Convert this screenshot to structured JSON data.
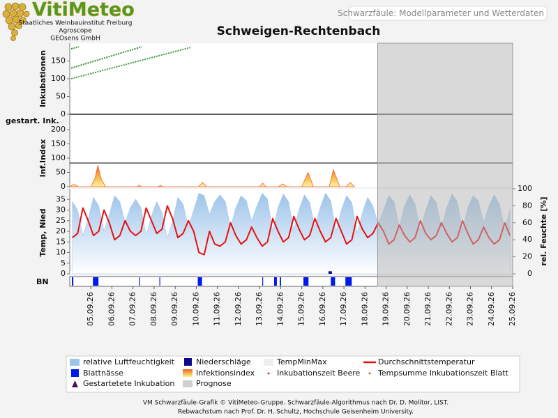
{
  "header": {
    "logo": "VitiMeteo",
    "org": [
      "Staatliches Weinbauinstitut Freiburg",
      "Agroscope",
      "GEOsens GmbH"
    ],
    "tab": "Schwarzfäule: Modellparameter und Wetterdaten"
  },
  "chart_data": {
    "type": "line",
    "title": "Schweigen-Rechtenbach",
    "xlim": [
      -1,
      20
    ],
    "xticks": [
      {
        "value": 0,
        "label": "05.09.26"
      },
      {
        "value": 1,
        "label": "06.09.26"
      },
      {
        "value": 2,
        "label": "07.09.26"
      },
      {
        "value": 3,
        "label": "08.09.26"
      },
      {
        "value": 4,
        "label": "09.09.26"
      },
      {
        "value": 5,
        "label": "10.09.26"
      },
      {
        "value": 6,
        "label": "11.09.26"
      },
      {
        "value": 7,
        "label": "12.09.26"
      },
      {
        "value": 8,
        "label": "13.09.26"
      },
      {
        "value": 9,
        "label": "14.09.26"
      },
      {
        "value": 10,
        "label": "15.09.26"
      },
      {
        "value": 11,
        "label": "16.09.26"
      },
      {
        "value": 12,
        "label": "17.09.26"
      },
      {
        "value": 13,
        "label": "18.09.26"
      },
      {
        "value": 14,
        "label": "19.09.26"
      },
      {
        "value": 15,
        "label": "20.09.26"
      },
      {
        "value": 16,
        "label": "21.09.26"
      },
      {
        "value": 17,
        "label": "22.09.26"
      },
      {
        "value": 18,
        "label": "23.09.26"
      },
      {
        "value": 19,
        "label": "24.09.26"
      },
      {
        "value": 20,
        "label": "25.09.26"
      }
    ],
    "forecast_start": 13.6,
    "forecast_color": "#b4b4b4",
    "started_label": "gestart. Ink.",
    "bn_label": "BN",
    "bn_color": "#0018f0",
    "bn": [
      [
        -0.9,
        -0.83
      ],
      [
        0.1,
        0.36
      ],
      [
        2.29,
        2.32
      ],
      [
        3.25,
        3.28
      ],
      [
        5.07,
        5.27
      ],
      [
        8.13,
        8.16
      ],
      [
        8.69,
        8.82
      ],
      [
        8.96,
        9.02
      ],
      [
        10.08,
        10.32
      ],
      [
        11.38,
        11.58
      ],
      [
        12.07,
        12.37
      ]
    ],
    "panels": [
      {
        "ylabel": "Inkubationen",
        "ylim": [
          0,
          200
        ],
        "yticks": [
          0,
          50,
          100,
          150
        ],
        "series": [
          {
            "type": "dashed",
            "color": "#2a8a2a",
            "x": [
              -0.93,
              -0.57
            ],
            "values": [
              184,
              190
            ]
          },
          {
            "type": "dashed",
            "color": "#2a8a2a",
            "x": [
              -0.93,
              2.42
            ],
            "values": [
              130,
              190
            ]
          },
          {
            "type": "dashed",
            "color": "#3d9a3d",
            "x": [
              -0.93,
              4.72
            ],
            "values": [
              100,
              188
            ]
          }
        ]
      },
      {
        "ylabel": "Inf.Index",
        "ylim": [
          0,
          200
        ],
        "yticks": [
          0,
          50,
          100,
          150,
          200
        ],
        "reference_line": 83,
        "series": [
          {
            "type": "gradient-area",
            "color": "#f06030",
            "x": [
              -1,
              -0.8,
              -0.7,
              -0.6,
              0,
              0.2,
              0.33,
              0.5,
              0.7,
              2.2,
              2.3,
              2.4,
              3.2,
              3.3,
              3.4,
              5.1,
              5.3,
              5.5,
              8.0,
              8.15,
              8.3,
              8.9,
              9.1,
              9.3,
              10.0,
              10.3,
              10.55,
              11.3,
              11.5,
              11.8,
              12.1,
              12.3,
              12.5
            ],
            "values": [
              0,
              8,
              5,
              0,
              0,
              30,
              75,
              25,
              0,
              0,
              6,
              0,
              0,
              5,
              0,
              0,
              15,
              0,
              0,
              12,
              0,
              0,
              10,
              0,
              0,
              50,
              0,
              0,
              60,
              0,
              0,
              15,
              0
            ]
          }
        ]
      },
      {
        "ylabel": "Temp, Nied",
        "y2label": "rel. Feuchte [%]",
        "ylim": [
          0,
          40
        ],
        "yticks": [
          0,
          5,
          10,
          15,
          20,
          25,
          30,
          35
        ],
        "y2lim": [
          0,
          100
        ],
        "y2ticks": [
          0,
          20,
          40,
          60,
          80,
          100
        ],
        "series": [
          {
            "type": "area",
            "axis": "y2",
            "color": "#9ec4ea",
            "x": [
              -0.875,
              -0.625,
              -0.375,
              -0.125,
              0.125,
              0.375,
              0.625,
              0.875,
              1.125,
              1.375,
              1.625,
              1.875,
              2.125,
              2.375,
              2.625,
              2.875,
              3.125,
              3.375,
              3.625,
              3.875,
              4.125,
              4.375,
              4.625,
              4.875,
              5.125,
              5.375,
              5.625,
              5.875,
              6.125,
              6.375,
              6.625,
              6.875,
              7.125,
              7.375,
              7.625,
              7.875,
              8.125,
              8.375,
              8.625,
              8.875,
              9.125,
              9.375,
              9.625,
              9.875,
              10.125,
              10.375,
              10.625,
              10.875,
              11.125,
              11.375,
              11.625,
              11.875,
              12.125,
              12.375,
              12.625,
              12.875,
              13.125,
              13.375,
              13.625,
              13.875,
              14.125,
              14.375,
              14.625,
              14.875,
              15.125,
              15.375,
              15.625,
              15.875,
              16.125,
              16.375,
              16.625,
              16.875,
              17.125,
              17.375,
              17.625,
              17.875,
              18.125,
              18.375,
              18.625,
              18.875,
              19.125,
              19.375,
              19.625,
              19.875
            ],
            "values": [
              85,
              75,
              45,
              65,
              90,
              80,
              50,
              70,
              92,
              85,
              60,
              78,
              88,
              78,
              45,
              68,
              85,
              72,
              42,
              62,
              90,
              82,
              55,
              75,
              95,
              92,
              70,
              85,
              93,
              85,
              55,
              78,
              92,
              86,
              62,
              80,
              95,
              88,
              50,
              78,
              94,
              85,
              52,
              76,
              93,
              84,
              55,
              78,
              95,
              86,
              50,
              75,
              92,
              84,
              48,
              72,
              90,
              80,
              58,
              75,
              92,
              85,
              55,
              80,
              93,
              82,
              50,
              75,
              92,
              84,
              55,
              78,
              94,
              85,
              52,
              78,
              92,
              86,
              60,
              80,
              93,
              82,
              52,
              76
            ]
          },
          {
            "type": "line",
            "color": "#e81010",
            "x": [
              -0.875,
              -0.625,
              -0.375,
              -0.125,
              0.125,
              0.375,
              0.625,
              0.875,
              1.125,
              1.375,
              1.625,
              1.875,
              2.125,
              2.375,
              2.625,
              2.875,
              3.125,
              3.375,
              3.625,
              3.875,
              4.125,
              4.375,
              4.625,
              4.875,
              5.125,
              5.375,
              5.625,
              5.875,
              6.125,
              6.375,
              6.625,
              6.875,
              7.125,
              7.375,
              7.625,
              7.875,
              8.125,
              8.375,
              8.625,
              8.875,
              9.125,
              9.375,
              9.625,
              9.875,
              10.125,
              10.375,
              10.625,
              10.875,
              11.125,
              11.375,
              11.625,
              11.875,
              12.125,
              12.375,
              12.625,
              12.875,
              13.125,
              13.375,
              13.625,
              13.875,
              14.125,
              14.375,
              14.625,
              14.875,
              15.125,
              15.375,
              15.625,
              15.875,
              16.125,
              16.375,
              16.625,
              16.875,
              17.125,
              17.375,
              17.625,
              17.875,
              18.125,
              18.375,
              18.625,
              18.875,
              19.125,
              19.375,
              19.625,
              19.875
            ],
            "values": [
              17,
              19,
              31,
              25,
              18,
              20,
              30,
              24,
              16,
              18,
              25,
              20,
              18,
              20,
              31,
              25,
              19,
              21,
              32,
              26,
              17,
              19,
              25,
              20,
              10,
              9,
              20,
              14,
              13,
              15,
              24,
              18,
              14,
              16,
              22,
              17,
              13,
              15,
              26,
              20,
              15,
              17,
              27,
              21,
              16,
              18,
              26,
              20,
              15,
              17,
              26,
              20,
              14,
              16,
              27,
              21,
              17,
              19,
              24,
              20,
              14,
              16,
              23,
              18,
              15,
              17,
              25,
              19,
              16,
              18,
              24,
              19,
              15,
              17,
              25,
              19,
              14,
              16,
              22,
              17,
              14,
              16,
              24,
              18
            ]
          },
          {
            "type": "bar",
            "color": "#0a0a8a",
            "x": [
              11.35
            ],
            "values": [
              1.2
            ]
          }
        ]
      }
    ]
  },
  "legend": [
    {
      "label": "relative Luftfeuchtigkeit",
      "color": "#9ec4ea",
      "swatch": "box"
    },
    {
      "label": "Blattnässe",
      "color": "#0018f0",
      "swatch": "square"
    },
    {
      "label": "Gestartetete Inkubation",
      "color": "#4a1050",
      "swatch": "triangle"
    },
    {
      "label": "Niederschläge",
      "color": "#0a0a8a",
      "swatch": "square"
    },
    {
      "label": "Infektionsindex",
      "color": "#f5b040",
      "swatch": "gradient"
    },
    {
      "label": "Prognose",
      "color": "#d0d0d0",
      "swatch": "box"
    },
    {
      "label": "TempMinMax",
      "color": "#eeeeee",
      "swatch": "box"
    },
    {
      "label": "Inkubationszeit Beere",
      "color": "#e03030",
      "swatch": "dot"
    },
    {
      "label": "Durchschnittstemperatur",
      "color": "#e81010",
      "swatch": "line"
    },
    {
      "label": "Tempsumme Inkubationszeit Blatt",
      "color": "#e06020",
      "swatch": "dot"
    }
  ],
  "footer": [
    "VM Schwarzfäule-Grafik © VitiMeteo-Gruppe. Schwarzfäule-Algorithmus nach Dr. D. Molitor, LIST.",
    "Rebwachstum nach Prof. Dr. H. Schultz, Hochschule Geisenheim University."
  ]
}
